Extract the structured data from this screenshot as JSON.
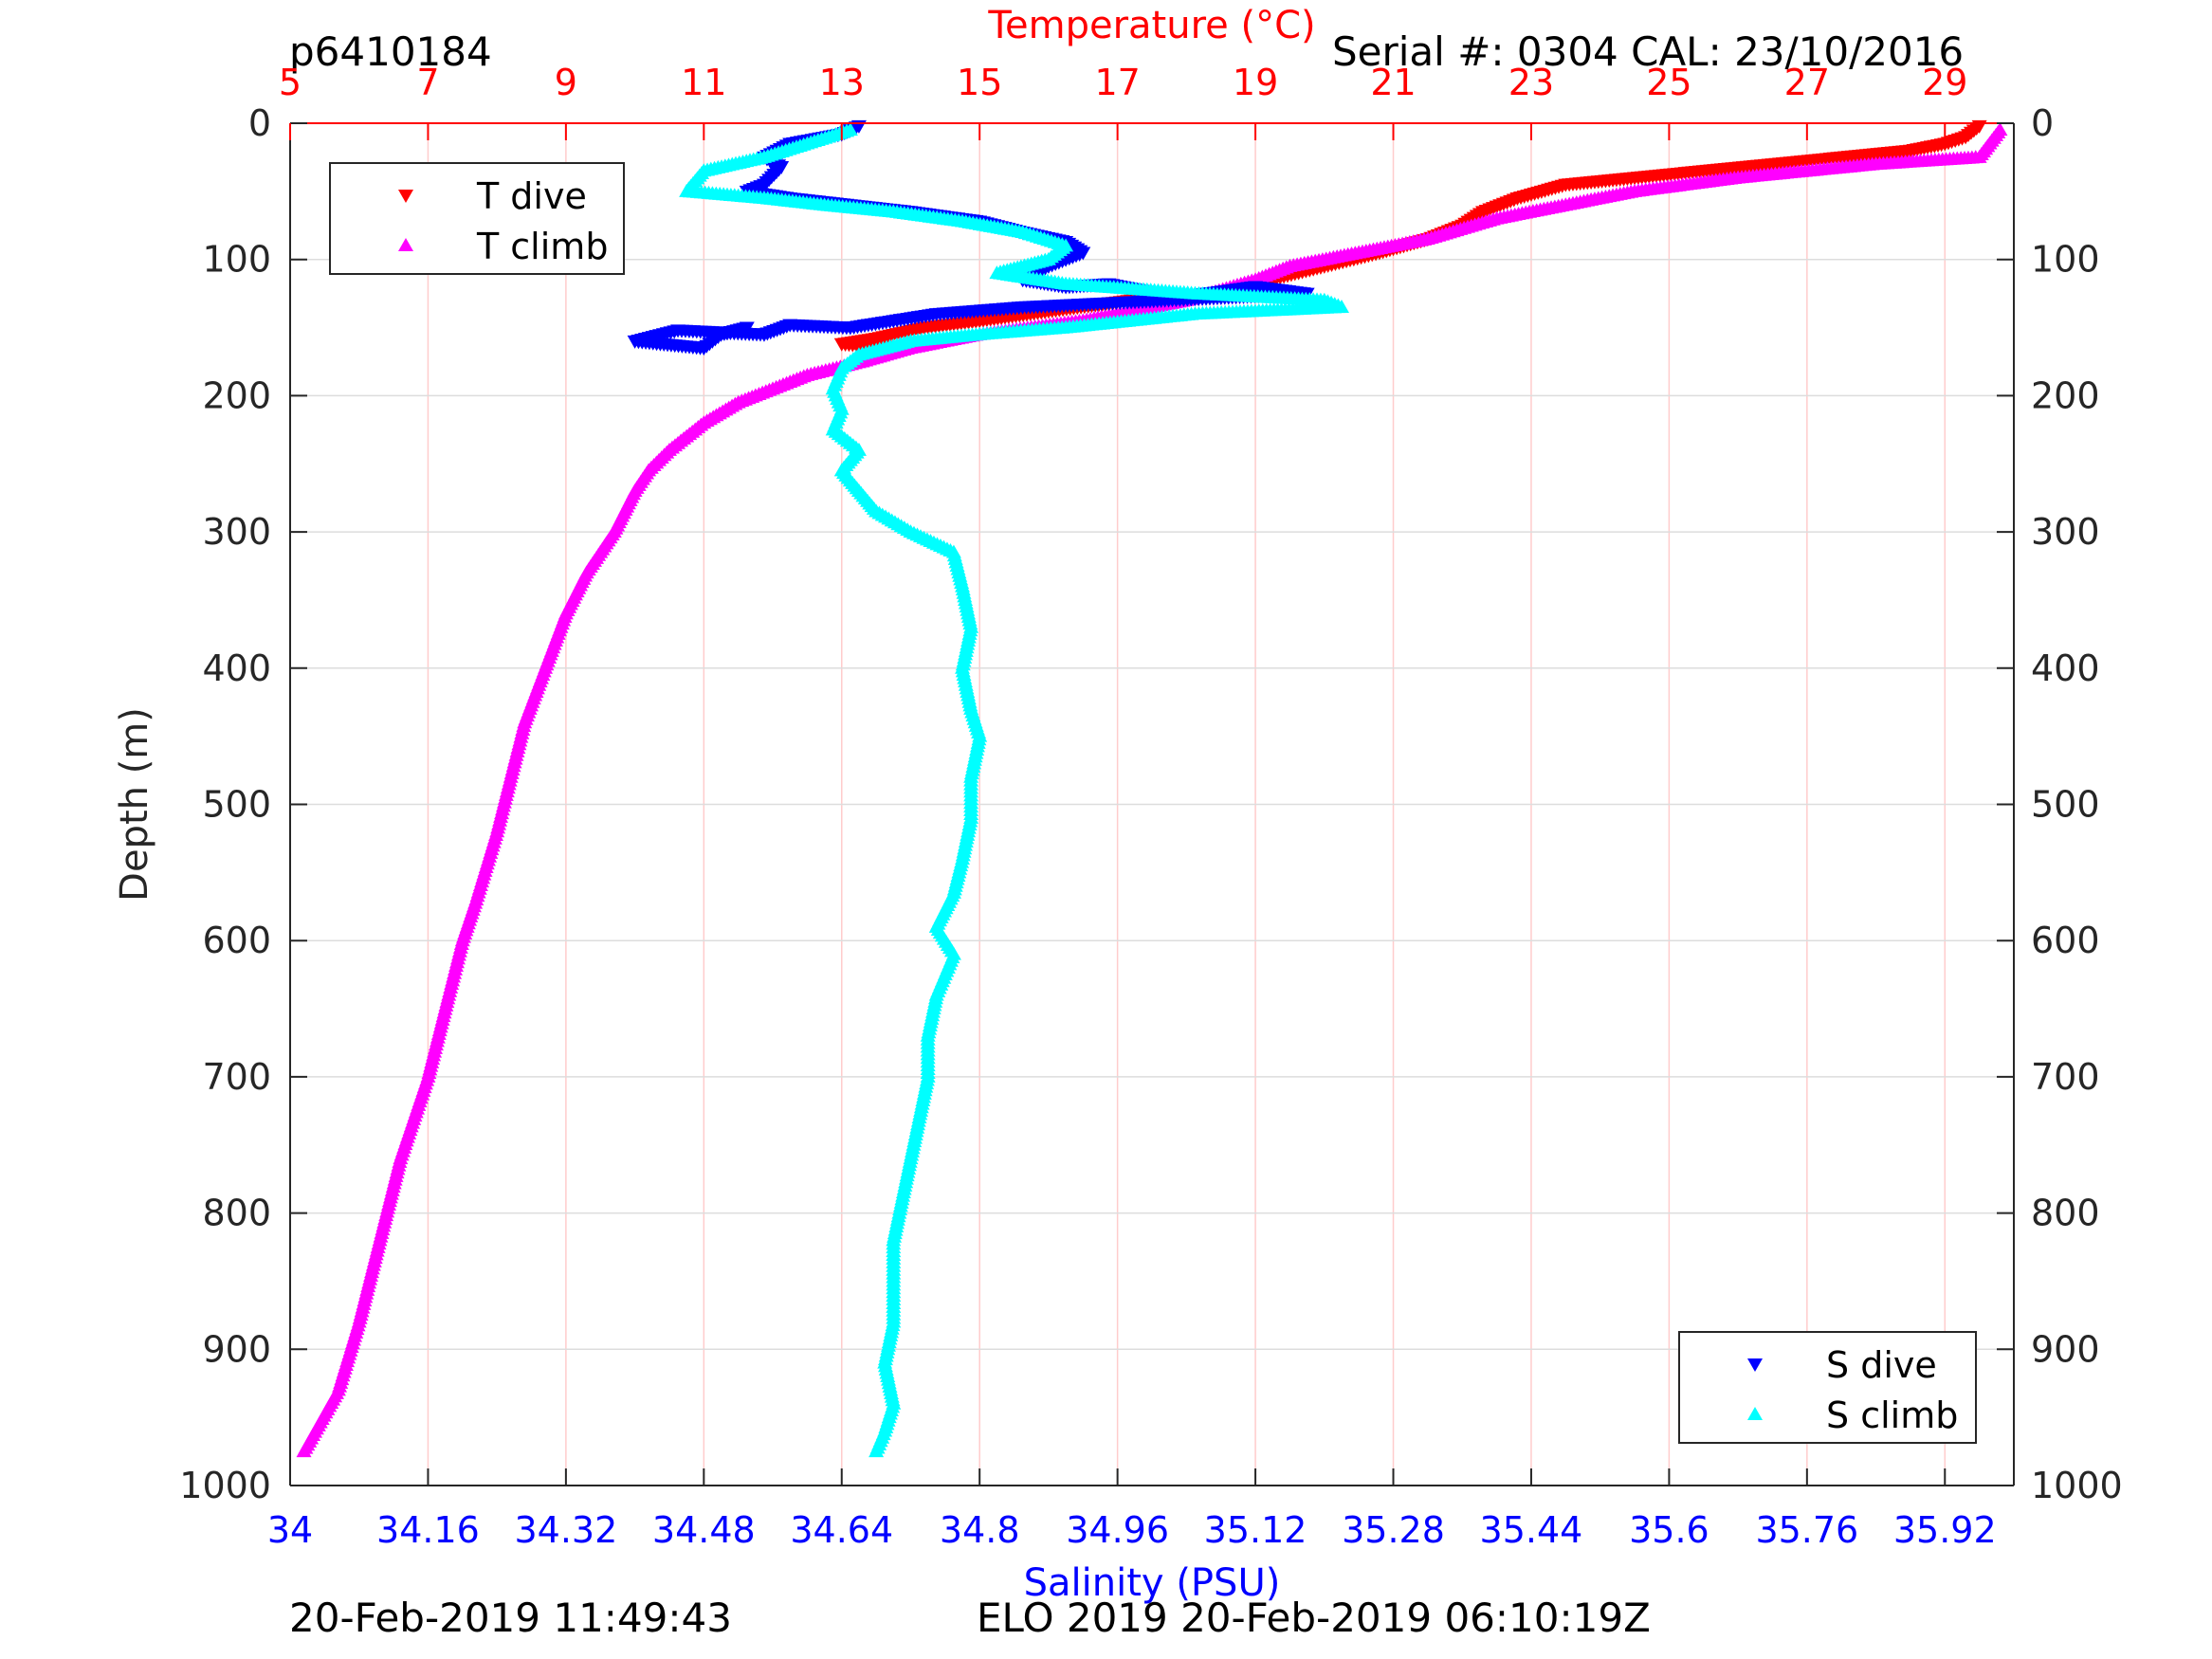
{
  "header": {
    "left_label": "p6410184",
    "right_label": "Serial #: 0304  CAL: 23/10/2016"
  },
  "footer": {
    "left_timestamp": "20-Feb-2019 11:49:43",
    "center_text": "ELO 2019 20-Feb-2019 06:10:19Z"
  },
  "colors": {
    "temperature_axis": "#ff0000",
    "salinity_axis": "#0000ff",
    "t_dive": "#ff0000",
    "t_climb": "#ff00ff",
    "s_dive": "#0000ff",
    "s_climb": "#00ffff",
    "grid": "#ffcccc",
    "grid_h": "#dddddd"
  },
  "chart_data": {
    "type": "scatter",
    "y_axis": {
      "label": "Depth (m)",
      "range": [
        0,
        1000
      ],
      "reversed": true,
      "ticks": [
        "0",
        "100",
        "200",
        "300",
        "400",
        "500",
        "600",
        "700",
        "800",
        "900",
        "1000"
      ],
      "tick_values": [
        0,
        100,
        200,
        300,
        400,
        500,
        600,
        700,
        800,
        900,
        1000
      ]
    },
    "top_axis": {
      "label": "Temperature (°C)",
      "range": [
        5,
        30
      ],
      "ticks": [
        "5",
        "7",
        "9",
        "11",
        "13",
        "15",
        "17",
        "19",
        "21",
        "23",
        "25",
        "27",
        "29"
      ],
      "tick_values": [
        5,
        7,
        9,
        11,
        13,
        15,
        17,
        19,
        21,
        23,
        25,
        27,
        29
      ]
    },
    "bottom_axis": {
      "label": "Salinity (PSU)",
      "range": [
        34,
        36
      ],
      "ticks": [
        "34",
        "34.16",
        "34.32",
        "34.48",
        "34.64",
        "34.8",
        "34.96",
        "35.12",
        "35.28",
        "35.44",
        "35.6",
        "35.76",
        "35.92"
      ],
      "tick_values": [
        34,
        34.16,
        34.32,
        34.48,
        34.64,
        34.8,
        34.96,
        35.12,
        35.28,
        35.44,
        35.6,
        35.76,
        35.92
      ]
    },
    "grid": true,
    "legends": [
      {
        "placement": "top-left",
        "entries": [
          "T dive",
          "T climb"
        ]
      },
      {
        "placement": "bottom-right",
        "entries": [
          "S dive",
          "S climb"
        ]
      }
    ],
    "series": [
      {
        "name": "T dive",
        "axis": "temperature",
        "marker": "triangle-down",
        "color": "#ff0000",
        "points": [
          [
            29.5,
            2
          ],
          [
            29.3,
            10
          ],
          [
            29.0,
            15
          ],
          [
            28.5,
            20
          ],
          [
            27.5,
            25
          ],
          [
            26.5,
            30
          ],
          [
            25.5,
            35
          ],
          [
            24.5,
            40
          ],
          [
            23.5,
            45
          ],
          [
            22.8,
            55
          ],
          [
            22.3,
            65
          ],
          [
            22.0,
            75
          ],
          [
            21.5,
            85
          ],
          [
            20.8,
            95
          ],
          [
            20.0,
            105
          ],
          [
            19.2,
            115
          ],
          [
            18.5,
            125
          ],
          [
            17.2,
            130
          ],
          [
            16.0,
            138
          ],
          [
            15.0,
            145
          ],
          [
            14.2,
            150
          ],
          [
            13.5,
            158
          ],
          [
            13.0,
            162
          ],
          [
            14.0,
            165
          ]
        ]
      },
      {
        "name": "T climb",
        "axis": "temperature",
        "marker": "triangle-up",
        "color": "#ff00ff",
        "points": [
          [
            29.8,
            5
          ],
          [
            29.5,
            25
          ],
          [
            28.0,
            30
          ],
          [
            26.0,
            40
          ],
          [
            24.5,
            50
          ],
          [
            23.5,
            60
          ],
          [
            22.5,
            70
          ],
          [
            21.5,
            85
          ],
          [
            20.5,
            95
          ],
          [
            19.5,
            105
          ],
          [
            19.0,
            115
          ],
          [
            18.0,
            130
          ],
          [
            16.5,
            145
          ],
          [
            15.0,
            155
          ],
          [
            14.0,
            165
          ],
          [
            13.3,
            175
          ],
          [
            12.5,
            185
          ],
          [
            12.0,
            195
          ],
          [
            11.5,
            205
          ],
          [
            11.0,
            220
          ],
          [
            10.5,
            240
          ],
          [
            10.2,
            255
          ],
          [
            10.0,
            270
          ],
          [
            9.7,
            300
          ],
          [
            9.3,
            330
          ],
          [
            9.0,
            360
          ],
          [
            8.7,
            400
          ],
          [
            8.4,
            440
          ],
          [
            8.2,
            480
          ],
          [
            8.0,
            520
          ],
          [
            7.7,
            570
          ],
          [
            7.5,
            600
          ],
          [
            7.3,
            640
          ],
          [
            7.0,
            700
          ],
          [
            6.6,
            760
          ],
          [
            6.3,
            820
          ],
          [
            6.0,
            880
          ],
          [
            5.7,
            930
          ],
          [
            5.2,
            975
          ]
        ]
      },
      {
        "name": "S dive",
        "axis": "salinity",
        "marker": "triangle-down",
        "color": "#0000ff",
        "points": [
          [
            34.66,
            2
          ],
          [
            34.64,
            8
          ],
          [
            34.58,
            15
          ],
          [
            34.55,
            25
          ],
          [
            34.57,
            32
          ],
          [
            34.55,
            45
          ],
          [
            34.53,
            50
          ],
          [
            34.58,
            55
          ],
          [
            34.65,
            60
          ],
          [
            34.72,
            65
          ],
          [
            34.8,
            72
          ],
          [
            34.85,
            80
          ],
          [
            34.9,
            87
          ],
          [
            34.92,
            95
          ],
          [
            34.88,
            105
          ],
          [
            34.85,
            115
          ],
          [
            34.9,
            120
          ],
          [
            34.95,
            118
          ],
          [
            35.03,
            128
          ],
          [
            35.12,
            120
          ],
          [
            35.18,
            125
          ],
          [
            34.85,
            135
          ],
          [
            34.75,
            140
          ],
          [
            34.7,
            145
          ],
          [
            34.65,
            150
          ],
          [
            34.58,
            148
          ],
          [
            34.55,
            155
          ],
          [
            34.45,
            152
          ],
          [
            34.4,
            160
          ],
          [
            34.48,
            165
          ],
          [
            34.5,
            155
          ],
          [
            34.53,
            150
          ]
        ]
      },
      {
        "name": "S climb",
        "axis": "salinity",
        "marker": "triangle-up",
        "color": "#00ffff",
        "points": [
          [
            34.65,
            5
          ],
          [
            34.6,
            15
          ],
          [
            34.55,
            25
          ],
          [
            34.48,
            35
          ],
          [
            34.46,
            50
          ],
          [
            34.55,
            55
          ],
          [
            34.62,
            60
          ],
          [
            34.7,
            65
          ],
          [
            34.78,
            72
          ],
          [
            34.85,
            80
          ],
          [
            34.9,
            90
          ],
          [
            34.88,
            100
          ],
          [
            34.82,
            110
          ],
          [
            34.9,
            118
          ],
          [
            35.05,
            125
          ],
          [
            35.2,
            130
          ],
          [
            35.22,
            135
          ],
          [
            35.05,
            140
          ],
          [
            34.9,
            150
          ],
          [
            34.8,
            155
          ],
          [
            34.72,
            160
          ],
          [
            34.66,
            170
          ],
          [
            34.64,
            180
          ],
          [
            34.63,
            195
          ],
          [
            34.64,
            210
          ],
          [
            34.63,
            225
          ],
          [
            34.66,
            240
          ],
          [
            34.64,
            255
          ],
          [
            34.66,
            270
          ],
          [
            34.68,
            285
          ],
          [
            34.72,
            300
          ],
          [
            34.77,
            315
          ],
          [
            34.78,
            340
          ],
          [
            34.79,
            370
          ],
          [
            34.78,
            400
          ],
          [
            34.79,
            430
          ],
          [
            34.8,
            450
          ],
          [
            34.79,
            480
          ],
          [
            34.79,
            510
          ],
          [
            34.78,
            540
          ],
          [
            34.77,
            565
          ],
          [
            34.75,
            590
          ],
          [
            34.77,
            610
          ],
          [
            34.75,
            640
          ],
          [
            34.74,
            670
          ],
          [
            34.74,
            700
          ],
          [
            34.73,
            730
          ],
          [
            34.72,
            760
          ],
          [
            34.71,
            790
          ],
          [
            34.7,
            820
          ],
          [
            34.7,
            850
          ],
          [
            34.7,
            880
          ],
          [
            34.69,
            910
          ],
          [
            34.7,
            940
          ],
          [
            34.69,
            960
          ],
          [
            34.68,
            975
          ]
        ]
      }
    ]
  }
}
